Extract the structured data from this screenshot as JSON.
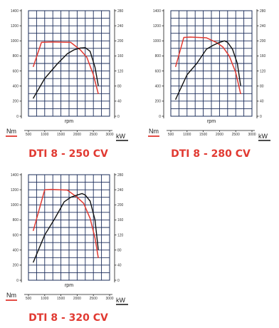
{
  "colors": {
    "torque": "#e13a32",
    "power": "#111111",
    "grid": "#1b2c5a",
    "title": "#e13a32"
  },
  "chart_data": [
    {
      "type": "line",
      "title": "DTI 8 - 250 CV",
      "xlabel": "rpm",
      "ylabel_left": "Nm",
      "ylabel_right": "kW",
      "xlim": [
        500,
        3000
      ],
      "ylim_left": [
        0,
        1400
      ],
      "ylim_right": [
        0,
        280
      ],
      "x_ticks": [
        "500",
        "1000",
        "1500",
        "2000",
        "2500",
        "3000"
      ],
      "y_ticks_left": [
        "0",
        "200",
        "400",
        "600",
        "800",
        "1000",
        "1200",
        "1400"
      ],
      "y_ticks_right": [
        "0",
        "40",
        "80",
        "120",
        "160",
        "200",
        "240",
        "280"
      ],
      "grid": true,
      "series": [
        {
          "axis": "left",
          "color": "#e13a32",
          "x": [
            650,
            900,
            1200,
            1800,
            2100,
            2300,
            2500,
            2650
          ],
          "y": [
            660,
            980,
            985,
            980,
            880,
            780,
            550,
            300
          ]
        },
        {
          "axis": "right",
          "color": "#111111",
          "x": [
            650,
            1000,
            1400,
            1700,
            1900,
            2100,
            2250,
            2400,
            2550,
            2650
          ],
          "y": [
            48,
            100,
            140,
            166,
            176,
            181,
            182,
            172,
            130,
            82
          ]
        }
      ]
    },
    {
      "type": "line",
      "title": "DTI 8 - 280 CV",
      "xlabel": "rpm",
      "ylabel_left": "Nm",
      "ylabel_right": "kW",
      "xlim": [
        500,
        3000
      ],
      "ylim_left": [
        0,
        1400
      ],
      "ylim_right": [
        0,
        280
      ],
      "x_ticks": [
        "500",
        "1000",
        "1500",
        "2000",
        "2500",
        "3000"
      ],
      "y_ticks_left": [
        "0",
        "200",
        "400",
        "600",
        "800",
        "1000",
        "1200",
        "1400"
      ],
      "y_ticks_right": [
        "0",
        "40",
        "80",
        "120",
        "160",
        "200",
        "240",
        "280"
      ],
      "grid": true,
      "series": [
        {
          "axis": "left",
          "color": "#e13a32",
          "x": [
            650,
            900,
            1100,
            1600,
            1900,
            2100,
            2300,
            2500,
            2650
          ],
          "y": [
            660,
            1045,
            1050,
            1040,
            980,
            920,
            800,
            580,
            300
          ]
        },
        {
          "axis": "right",
          "color": "#111111",
          "x": [
            650,
            1000,
            1300,
            1600,
            1800,
            2000,
            2150,
            2250,
            2400,
            2550,
            2650
          ],
          "y": [
            45,
            110,
            140,
            178,
            188,
            196,
            200,
            196,
            178,
            140,
            82
          ]
        }
      ]
    },
    {
      "type": "line",
      "title": "DTI 8 - 320 CV",
      "xlabel": "rpm",
      "ylabel_left": "Nm",
      "ylabel_right": "kW",
      "xlim": [
        500,
        3000
      ],
      "ylim_left": [
        0,
        1400
      ],
      "ylim_right": [
        0,
        280
      ],
      "x_ticks": [
        "500",
        "1000",
        "1500",
        "2000",
        "2500",
        "3000"
      ],
      "y_ticks_left": [
        "0",
        "200",
        "400",
        "600",
        "800",
        "1000",
        "1200",
        "1400"
      ],
      "y_ticks_right": [
        "0",
        "40",
        "80",
        "120",
        "160",
        "200",
        "240",
        "280"
      ],
      "grid": true,
      "series": [
        {
          "axis": "left",
          "color": "#e13a32",
          "x": [
            650,
            1000,
            1200,
            1700,
            2000,
            2200,
            2400,
            2550,
            2650
          ],
          "y": [
            660,
            1200,
            1205,
            1195,
            1100,
            1020,
            820,
            560,
            300
          ]
        },
        {
          "axis": "right",
          "color": "#111111",
          "x": [
            650,
            1000,
            1300,
            1600,
            1800,
            2000,
            2150,
            2250,
            2400,
            2550,
            2650
          ],
          "y": [
            48,
            120,
            162,
            208,
            220,
            226,
            230,
            226,
            210,
            160,
            82
          ]
        }
      ]
    }
  ]
}
